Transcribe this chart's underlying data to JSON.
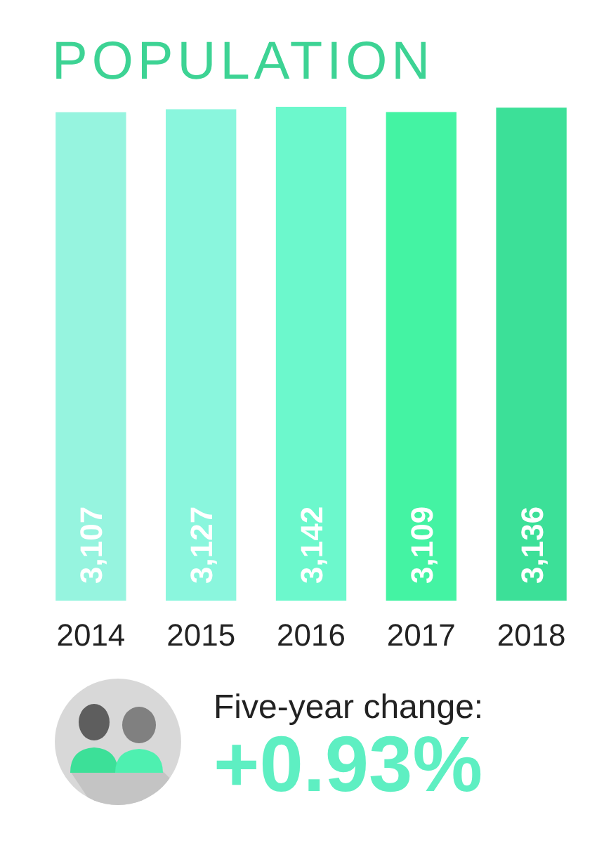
{
  "chart_data": {
    "type": "bar",
    "title": "POPULATION",
    "categories": [
      "2014",
      "2015",
      "2016",
      "2017",
      "2018"
    ],
    "values": [
      3107,
      3127,
      3142,
      3109,
      3136
    ],
    "value_labels": [
      "3,107",
      "3,127",
      "3,142",
      "3,109",
      "3,136"
    ],
    "colors": [
      "#96f4df",
      "#8af6dd",
      "#6cf8cc",
      "#44f3a3",
      "#3ce098"
    ],
    "tick_labels": "x",
    "annotations": [
      "Five-year change:",
      "+0.93%"
    ]
  }
}
